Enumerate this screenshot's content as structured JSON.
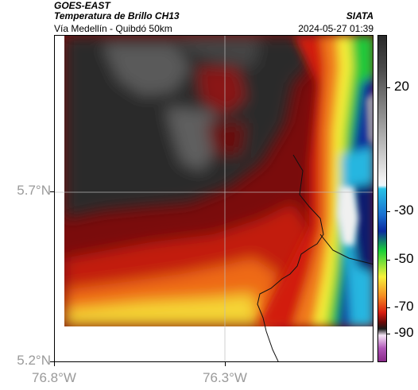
{
  "header": {
    "satellite": "GOES-EAST",
    "product": "Temperatura de Brillo CH13",
    "region": "Vía Medellín - Quibdó 50km",
    "organization": "SIATA",
    "datetime": "2024-05-27 01:39"
  },
  "axes": {
    "y_ticks": [
      "5.7°N",
      "5.2°N"
    ],
    "x_ticks": [
      "76.8°W",
      "76.3°W"
    ]
  },
  "colorbar": {
    "ticks": [
      "20",
      "-30",
      "-50",
      "-70",
      "-90"
    ],
    "colors": {
      "warm": "#2a2a2a",
      "gray": "#aaaaaa",
      "white": "#f0f0f0",
      "cyan": "#27c2e6",
      "blue": "#0a2aa0",
      "green": "#19d038",
      "yellow": "#f7f23a",
      "orange": "#f58c22",
      "red": "#d81e10",
      "darkred": "#6a0a0a",
      "magenta": "#b056b8"
    }
  }
}
